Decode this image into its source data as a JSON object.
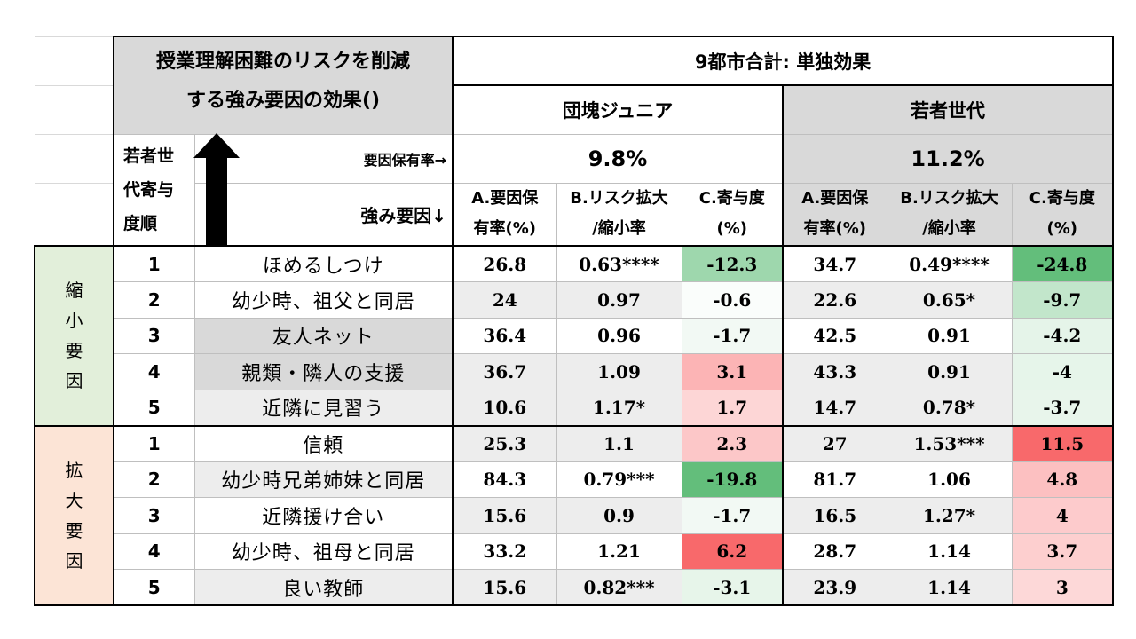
{
  "header": {
    "title_line1": "授業理解困難のリスクを削減",
    "title_line2": "する強み要因の効果()",
    "summary": "9都市合計: 単独効果",
    "group_dankai": "団塊ジュニア",
    "group_wakamono": "若者世代",
    "rank_label": "若者世代寄与度順",
    "possession_label": "要因保有率→",
    "strength_label": "強み要因↓",
    "rate_dankai": "9.8%",
    "rate_wakamono": "11.2%",
    "col_a_line1": "A.要因保",
    "col_a_line2": "有率(%)",
    "col_b_line1": "B.リスク拡大",
    "col_b_line2": "/縮小率",
    "col_c_line1": "C.寄与度",
    "col_c_line2": "(%)"
  },
  "sections": [
    {
      "label": "縮小要因",
      "rows": [
        {
          "rank": "1",
          "factor": "ほめるしつけ",
          "d_a": "26.8",
          "d_b": "0.63****",
          "d_c": "-12.3",
          "w_a": "34.7",
          "w_b": "0.49****",
          "w_c": "-24.8"
        },
        {
          "rank": "2",
          "factor": "幼少時、祖父と同居",
          "d_a": "24",
          "d_b": "0.97",
          "d_c": "-0.6",
          "w_a": "22.6",
          "w_b": "0.65*",
          "w_c": "-9.7"
        },
        {
          "rank": "3",
          "factor": "友人ネット",
          "d_a": "36.4",
          "d_b": "0.96",
          "d_c": "-1.7",
          "w_a": "42.5",
          "w_b": "0.91",
          "w_c": "-4.2"
        },
        {
          "rank": "4",
          "factor": "親類・隣人の支援",
          "d_a": "36.7",
          "d_b": "1.09",
          "d_c": "3.1",
          "w_a": "43.3",
          "w_b": "0.91",
          "w_c": "-4"
        },
        {
          "rank": "5",
          "factor": "近隣に見習う",
          "d_a": "10.6",
          "d_b": "1.17*",
          "d_c": "1.7",
          "w_a": "14.7",
          "w_b": "0.78*",
          "w_c": "-3.7"
        }
      ]
    },
    {
      "label": "拡大要因",
      "rows": [
        {
          "rank": "1",
          "factor": "信頼",
          "d_a": "25.3",
          "d_b": "1.1",
          "d_c": "2.3",
          "w_a": "27",
          "w_b": "1.53***",
          "w_c": "11.5"
        },
        {
          "rank": "2",
          "factor": "幼少時兄弟姉妹と同居",
          "d_a": "84.3",
          "d_b": "0.79***",
          "d_c": "-19.8",
          "w_a": "81.7",
          "w_b": "1.06",
          "w_c": "4.8"
        },
        {
          "rank": "3",
          "factor": "近隣援け合い",
          "d_a": "15.6",
          "d_b": "0.9",
          "d_c": "-1.7",
          "w_a": "16.5",
          "w_b": "1.27*",
          "w_c": "4"
        },
        {
          "rank": "4",
          "factor": "幼少時、祖母と同居",
          "d_a": "33.2",
          "d_b": "1.21",
          "d_c": "6.2",
          "w_a": "28.7",
          "w_b": "1.14",
          "w_c": "3.7"
        },
        {
          "rank": "5",
          "factor": "良い教師",
          "d_a": "15.6",
          "d_b": "0.82***",
          "d_c": "-3.1",
          "w_a": "23.9",
          "w_b": "1.14",
          "w_c": "3"
        }
      ]
    }
  ],
  "colors": {
    "shrink_bg": "#e2efda",
    "expand_bg": "#fce4d6",
    "header_gray": "#d9d9d9",
    "light_gray": "#ededed",
    "green_strong": "#63be7b",
    "red_strong": "#f8696b"
  },
  "icons": {
    "arrow": "up-arrow-icon"
  }
}
